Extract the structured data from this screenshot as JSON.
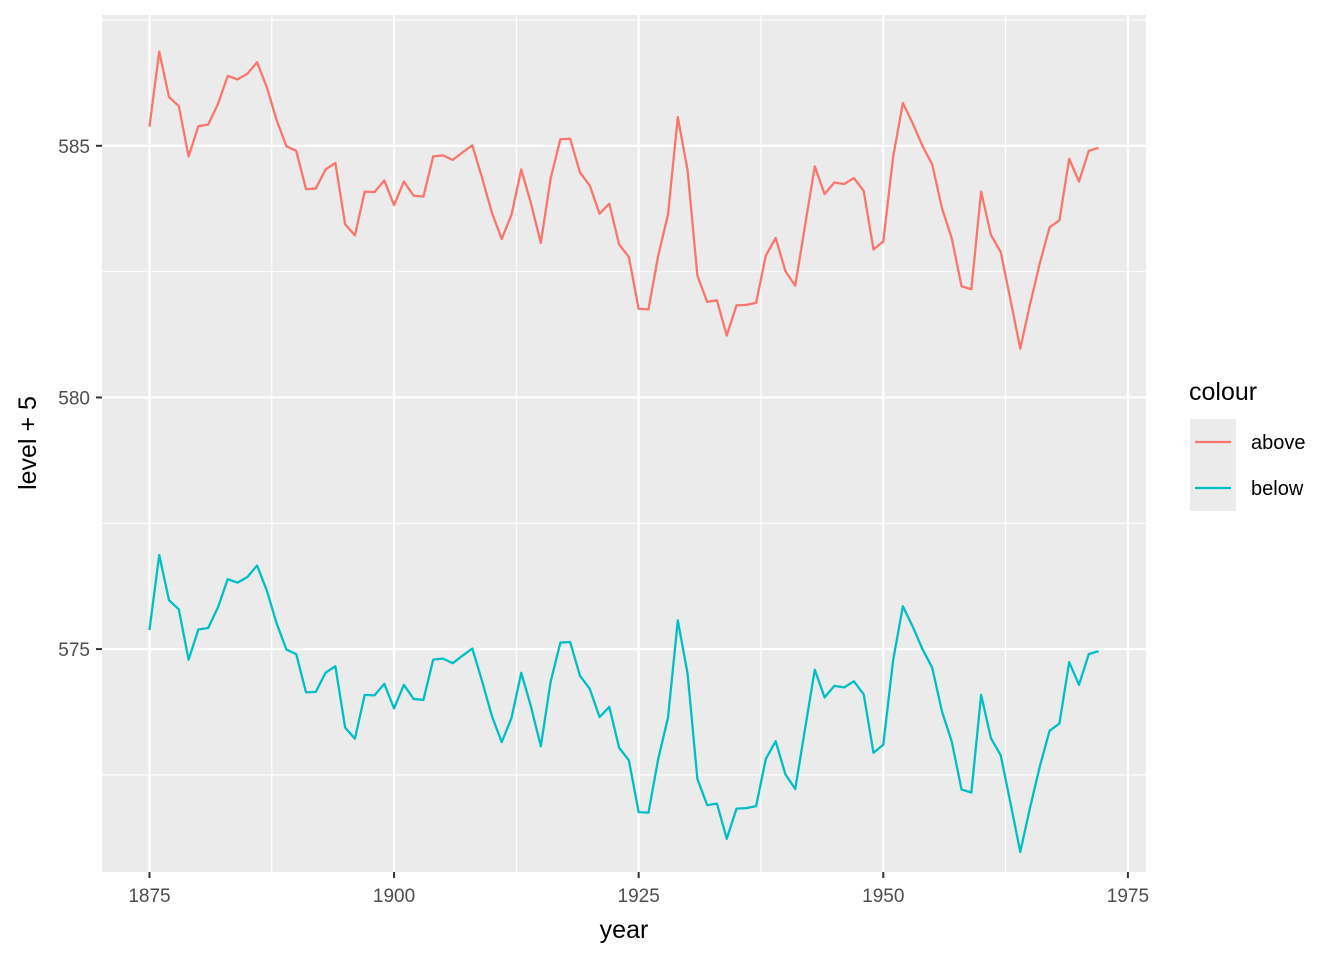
{
  "chart_data": {
    "type": "line",
    "xlabel": "year",
    "ylabel": "level + 5",
    "xlim": [
      1870.15,
      1976.85
    ],
    "ylim": [
      570.571,
      587.599
    ],
    "x_ticks": [
      1875,
      1900,
      1925,
      1950,
      1975
    ],
    "y_ticks": [
      575,
      580,
      585
    ],
    "grid": true,
    "background": "#ebebeb",
    "legend": {
      "title": "colour",
      "position": "right",
      "entries": [
        "above",
        "below"
      ]
    },
    "series": [
      {
        "name": "above",
        "color": "#F8766D",
        "x": [
          1875,
          1876,
          1877,
          1878,
          1879,
          1880,
          1881,
          1882,
          1883,
          1884,
          1885,
          1886,
          1887,
          1888,
          1889,
          1890,
          1891,
          1892,
          1893,
          1894,
          1895,
          1896,
          1897,
          1898,
          1899,
          1900,
          1901,
          1902,
          1903,
          1904,
          1905,
          1906,
          1907,
          1908,
          1909,
          1910,
          1911,
          1912,
          1913,
          1914,
          1915,
          1916,
          1917,
          1918,
          1919,
          1920,
          1921,
          1922,
          1923,
          1924,
          1925,
          1926,
          1927,
          1928,
          1929,
          1930,
          1931,
          1932,
          1933,
          1934,
          1935,
          1936,
          1937,
          1938,
          1939,
          1940,
          1941,
          1942,
          1943,
          1944,
          1945,
          1946,
          1947,
          1948,
          1949,
          1950,
          1951,
          1952,
          1953,
          1954,
          1955,
          1956,
          1957,
          1958,
          1959,
          1960,
          1961,
          1962,
          1963,
          1964,
          1965,
          1966,
          1967,
          1968,
          1969,
          1970,
          1971,
          1972
        ],
        "y": [
          585.38,
          586.87,
          585.97,
          585.79,
          584.79,
          585.39,
          585.42,
          585.83,
          586.39,
          586.32,
          586.43,
          586.66,
          586.16,
          585.51,
          584.99,
          584.9,
          584.14,
          584.15,
          584.53,
          584.66,
          583.44,
          583.22,
          584.09,
          584.08,
          584.31,
          583.82,
          584.29,
          584.01,
          583.99,
          584.79,
          584.81,
          584.72,
          584.87,
          585.01,
          584.36,
          583.67,
          583.15,
          583.63,
          584.53,
          583.85,
          583.07,
          584.35,
          585.13,
          585.14,
          584.47,
          584.21,
          583.65,
          583.85,
          583.04,
          582.79,
          581.76,
          581.75,
          582.82,
          583.64,
          585.57,
          584.51,
          582.42,
          581.9,
          581.93,
          581.23,
          581.83,
          581.84,
          581.88,
          582.82,
          583.17,
          582.51,
          582.22,
          583.41,
          584.59,
          584.04,
          584.27,
          584.24,
          584.36,
          584.1,
          582.94,
          583.1,
          584.77,
          585.85,
          585.45,
          585.0,
          584.63,
          583.76,
          583.16,
          582.21,
          582.15,
          584.09,
          583.23,
          582.89,
          581.94,
          580.97,
          581.85,
          582.67,
          583.38,
          583.52,
          584.74,
          584.29,
          584.9,
          584.96
        ]
      },
      {
        "name": "below",
        "color": "#00BFC4",
        "x": [
          1875,
          1876,
          1877,
          1878,
          1879,
          1880,
          1881,
          1882,
          1883,
          1884,
          1885,
          1886,
          1887,
          1888,
          1889,
          1890,
          1891,
          1892,
          1893,
          1894,
          1895,
          1896,
          1897,
          1898,
          1899,
          1900,
          1901,
          1902,
          1903,
          1904,
          1905,
          1906,
          1907,
          1908,
          1909,
          1910,
          1911,
          1912,
          1913,
          1914,
          1915,
          1916,
          1917,
          1918,
          1919,
          1920,
          1921,
          1922,
          1923,
          1924,
          1925,
          1926,
          1927,
          1928,
          1929,
          1930,
          1931,
          1932,
          1933,
          1934,
          1935,
          1936,
          1937,
          1938,
          1939,
          1940,
          1941,
          1942,
          1943,
          1944,
          1945,
          1946,
          1947,
          1948,
          1949,
          1950,
          1951,
          1952,
          1953,
          1954,
          1955,
          1956,
          1957,
          1958,
          1959,
          1960,
          1961,
          1962,
          1963,
          1964,
          1965,
          1966,
          1967,
          1968,
          1969,
          1970,
          1971,
          1972
        ],
        "y": [
          575.38,
          576.87,
          575.97,
          575.79,
          574.79,
          575.39,
          575.42,
          575.83,
          576.39,
          576.32,
          576.43,
          576.66,
          576.16,
          575.51,
          574.99,
          574.9,
          574.14,
          574.15,
          574.53,
          574.66,
          573.44,
          573.22,
          574.09,
          574.08,
          574.31,
          573.82,
          574.29,
          574.01,
          573.99,
          574.79,
          574.81,
          574.72,
          574.87,
          575.01,
          574.36,
          573.67,
          573.15,
          573.63,
          574.53,
          573.85,
          573.07,
          574.35,
          575.13,
          575.14,
          574.47,
          574.21,
          573.65,
          573.85,
          573.04,
          572.79,
          571.76,
          571.75,
          572.82,
          573.64,
          575.57,
          574.51,
          572.42,
          571.9,
          571.93,
          571.23,
          571.83,
          571.84,
          571.88,
          572.82,
          573.17,
          572.51,
          572.22,
          573.41,
          574.59,
          574.04,
          574.27,
          574.24,
          574.36,
          574.1,
          572.94,
          573.1,
          574.77,
          575.85,
          575.45,
          575.0,
          574.63,
          573.76,
          573.16,
          572.21,
          572.15,
          574.09,
          573.23,
          572.89,
          571.94,
          570.97,
          571.85,
          572.67,
          573.38,
          573.52,
          574.74,
          574.29,
          574.9,
          574.96
        ]
      }
    ]
  }
}
